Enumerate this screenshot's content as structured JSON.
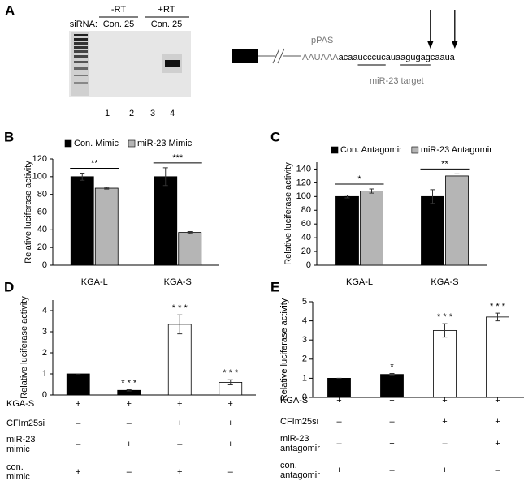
{
  "panel_a": {
    "letter": "A",
    "gel": {
      "sirna_label": "siRNA:",
      "groups": [
        {
          "label": "-RT",
          "lanes": "Con. 25"
        },
        {
          "label": "+RT",
          "lanes": "Con. 25"
        }
      ],
      "lane_numbers": [
        "1",
        "2",
        "3",
        "4"
      ]
    },
    "diagram": {
      "pas_label": "pPAS",
      "target_label": "miR-23 target",
      "sequence": [
        {
          "text": "AAUAAA",
          "style": "gray"
        },
        {
          "text": "acaa",
          "style": "plain"
        },
        {
          "text": "ucccuc",
          "style": "underline"
        },
        {
          "text": "aua",
          "style": "plain"
        },
        {
          "text": "agugag",
          "style": "underline"
        },
        {
          "text": "caaua",
          "style": "plain"
        }
      ]
    }
  },
  "chart_data": [
    {
      "panel": "B",
      "type": "bar",
      "ylabel": "Relative luciferase activity",
      "categories": [
        "KGA-L",
        "KGA-S"
      ],
      "series": [
        {
          "name": "Con. Mimic",
          "color": "#000000",
          "values": [
            100,
            100
          ],
          "errors": [
            4,
            10
          ]
        },
        {
          "name": "miR-23 Mimic",
          "color": "#b5b5b5",
          "values": [
            87,
            37
          ],
          "errors": [
            1,
            1
          ]
        }
      ],
      "significance": [
        "**",
        "***"
      ],
      "ylim": [
        0,
        120
      ],
      "yticks": [
        0,
        20,
        40,
        60,
        80,
        100,
        120
      ]
    },
    {
      "panel": "C",
      "type": "bar",
      "ylabel": "Relative luciferase activity",
      "categories": [
        "KGA-L",
        "KGA-S"
      ],
      "series": [
        {
          "name": "Con. Antagomir",
          "color": "#000000",
          "values": [
            100,
            100
          ],
          "errors": [
            2,
            10
          ]
        },
        {
          "name": "miR-23 Antagomir",
          "color": "#b5b5b5",
          "values": [
            108,
            130
          ],
          "errors": [
            3,
            3
          ]
        }
      ],
      "significance": [
        "*",
        "**"
      ],
      "ylim": [
        0,
        150
      ],
      "yticks": [
        0,
        20,
        40,
        60,
        80,
        100,
        120,
        140
      ]
    },
    {
      "panel": "D",
      "type": "bar",
      "ylabel": "Relative luciferase activity",
      "series": [
        {
          "colors": [
            "#000000",
            "#000000",
            "#ffffff",
            "#ffffff"
          ],
          "values": [
            1,
            0.22,
            3.35,
            0.6
          ],
          "errors": [
            0,
            0.03,
            0.45,
            0.12
          ]
        }
      ],
      "significance": [
        null,
        "* * *",
        "* * *",
        "* * *"
      ],
      "ylim": [
        0,
        4.5
      ],
      "yticks": [
        0,
        1,
        2,
        3,
        4
      ],
      "conditions": [
        {
          "label": [
            "KGA-S"
          ],
          "marks": [
            "+",
            "+",
            "+",
            "+"
          ]
        },
        {
          "label": [
            "CFIm25si"
          ],
          "marks": [
            "–",
            "–",
            "+",
            "+"
          ]
        },
        {
          "label": [
            "miR-23",
            "mimic"
          ],
          "marks": [
            "–",
            "+",
            "–",
            "+"
          ]
        },
        {
          "label": [
            "con.",
            "mimic"
          ],
          "marks": [
            "+",
            "–",
            "+",
            "–"
          ]
        }
      ]
    },
    {
      "panel": "E",
      "type": "bar",
      "ylabel": "Relative luciferase activity",
      "series": [
        {
          "colors": [
            "#000000",
            "#000000",
            "#ffffff",
            "#ffffff"
          ],
          "values": [
            1,
            1.2,
            3.5,
            4.2
          ],
          "errors": [
            0,
            0.05,
            0.35,
            0.2
          ]
        }
      ],
      "significance": [
        null,
        "*",
        "* * *",
        "* * *"
      ],
      "ylim": [
        0,
        5
      ],
      "yticks": [
        0,
        1,
        2,
        3,
        4,
        5
      ],
      "conditions": [
        {
          "label": [
            "KGA-S"
          ],
          "marks": [
            "+",
            "+",
            "+",
            "+"
          ]
        },
        {
          "label": [
            "CFIm25si"
          ],
          "marks": [
            "–",
            "–",
            "+",
            "+"
          ]
        },
        {
          "label": [
            "miR-23",
            "antagomir"
          ],
          "marks": [
            "–",
            "+",
            "–",
            "+"
          ]
        },
        {
          "label": [
            "con.",
            "antagomir"
          ],
          "marks": [
            "+",
            "–",
            "+",
            "–"
          ]
        }
      ]
    }
  ]
}
